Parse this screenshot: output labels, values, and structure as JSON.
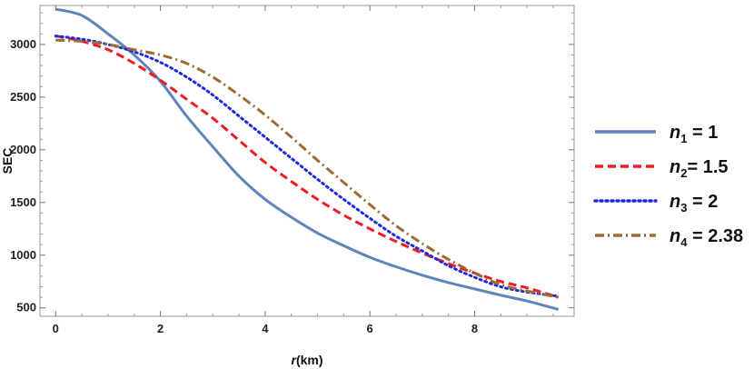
{
  "chart_data": {
    "type": "line",
    "xlabel": "r (km)",
    "ylabel": "SEC",
    "xlim": [
      -0.3,
      9.9
    ],
    "ylim": [
      420,
      3370
    ],
    "x_ticks": [
      "0",
      "2",
      "4",
      "6",
      "8"
    ],
    "y_ticks": [
      "500",
      "1000",
      "1500",
      "2000",
      "2500",
      "3000"
    ],
    "grid": false,
    "legend_position": "right",
    "series": [
      {
        "name": "n1 = 1",
        "legend_base": "n",
        "legend_sub": "1",
        "legend_rest": " = 1",
        "color": "#5f84b7",
        "dash": "solid",
        "x": [
          0,
          0.5,
          1,
          1.5,
          2,
          2.5,
          3,
          3.5,
          4,
          4.5,
          5,
          5.5,
          6,
          6.5,
          7,
          7.5,
          8,
          8.5,
          9,
          9.6
        ],
        "y": [
          3335,
          3275,
          3100,
          2900,
          2650,
          2320,
          2030,
          1750,
          1530,
          1360,
          1210,
          1090,
          980,
          890,
          810,
          740,
          680,
          620,
          565,
          485
        ]
      },
      {
        "name": "n2 = 1.5",
        "legend_base": "n",
        "legend_sub": "2",
        "legend_rest": "= 1.5",
        "color": "#ee1c24",
        "dash": "dashed",
        "x": [
          0,
          0.5,
          1,
          1.5,
          2,
          2.5,
          3,
          3.5,
          4,
          4.5,
          5,
          5.5,
          6,
          6.5,
          7,
          7.5,
          8,
          8.5,
          9,
          9.6
        ],
        "y": [
          3080,
          3030,
          2950,
          2820,
          2660,
          2480,
          2300,
          2090,
          1880,
          1700,
          1530,
          1380,
          1250,
          1130,
          1020,
          920,
          830,
          750,
          690,
          600
        ]
      },
      {
        "name": "n3 = 2",
        "legend_base": "n",
        "legend_sub": "3",
        "legend_rest": " = 2",
        "color": "#1f2bdc",
        "dash": "dotted",
        "x": [
          0,
          0.5,
          1,
          1.5,
          2,
          2.5,
          3,
          3.5,
          4,
          4.5,
          5,
          5.5,
          6,
          6.5,
          7,
          7.5,
          8,
          8.5,
          9,
          9.6
        ],
        "y": [
          3080,
          3050,
          3000,
          2930,
          2830,
          2690,
          2520,
          2320,
          2120,
          1920,
          1720,
          1530,
          1350,
          1180,
          1040,
          900,
          790,
          700,
          650,
          610
        ]
      },
      {
        "name": "n4 = 2.38",
        "legend_base": "n",
        "legend_sub": "4",
        "legend_rest": " = 2.38",
        "color": "#9c6b34",
        "dash": "dashdot",
        "x": [
          0,
          0.5,
          1,
          1.5,
          2,
          2.5,
          3,
          3.5,
          4,
          4.5,
          5,
          5.5,
          6,
          6.5,
          7,
          7.5,
          8,
          8.5,
          9,
          9.6
        ],
        "y": [
          3040,
          3030,
          3000,
          2950,
          2900,
          2820,
          2690,
          2520,
          2330,
          2120,
          1900,
          1690,
          1480,
          1280,
          1110,
          960,
          830,
          720,
          660,
          600
        ]
      }
    ]
  }
}
